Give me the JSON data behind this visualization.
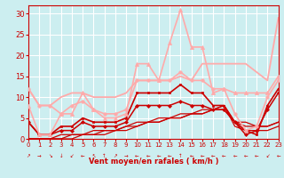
{
  "xlabel": "Vent moyen/en rafales ( km/h )",
  "xlim": [
    0,
    23
  ],
  "ylim": [
    0,
    32
  ],
  "yticks": [
    0,
    5,
    10,
    15,
    20,
    25,
    30
  ],
  "xticks": [
    0,
    1,
    2,
    3,
    4,
    5,
    6,
    7,
    8,
    9,
    10,
    11,
    12,
    13,
    14,
    15,
    16,
    17,
    18,
    19,
    20,
    21,
    22,
    23
  ],
  "bg_color": "#cceef0",
  "grid_color": "#aadddd",
  "series": [
    {
      "x": [
        0,
        1,
        2,
        3,
        4,
        5,
        6,
        7,
        8,
        9,
        10,
        11,
        12,
        13,
        14,
        15,
        16,
        17,
        18,
        19,
        20,
        21,
        22,
        23
      ],
      "y": [
        0,
        0,
        0,
        1,
        1,
        1,
        2,
        2,
        2,
        3,
        3,
        4,
        4,
        5,
        5,
        6,
        6,
        7,
        7,
        4,
        4,
        3,
        3,
        4
      ],
      "color": "#cc0000",
      "lw": 0.9,
      "marker": null,
      "ms": 0
    },
    {
      "x": [
        0,
        1,
        2,
        3,
        4,
        5,
        6,
        7,
        8,
        9,
        10,
        11,
        12,
        13,
        14,
        15,
        16,
        17,
        18,
        19,
        20,
        21,
        22,
        23
      ],
      "y": [
        0,
        0,
        0,
        0,
        1,
        1,
        1,
        2,
        2,
        3,
        4,
        4,
        5,
        5,
        6,
        6,
        7,
        7,
        8,
        4,
        3,
        3,
        3,
        4
      ],
      "color": "#cc0000",
      "lw": 0.9,
      "marker": null,
      "ms": 0
    },
    {
      "x": [
        0,
        1,
        2,
        3,
        4,
        5,
        6,
        7,
        8,
        9,
        10,
        11,
        12,
        13,
        14,
        15,
        16,
        17,
        18,
        19,
        20,
        21,
        22,
        23
      ],
      "y": [
        0,
        0,
        0,
        0,
        0,
        1,
        1,
        1,
        2,
        2,
        3,
        4,
        4,
        5,
        5,
        6,
        6,
        7,
        8,
        3,
        2,
        2,
        2,
        3
      ],
      "color": "#cc0000",
      "lw": 0.9,
      "marker": null,
      "ms": 0
    },
    {
      "x": [
        0,
        1,
        2,
        3,
        4,
        5,
        6,
        7,
        8,
        9,
        10,
        11,
        12,
        13,
        14,
        15,
        16,
        17,
        18,
        19,
        20,
        21,
        22,
        23
      ],
      "y": [
        4,
        1,
        1,
        3,
        3,
        5,
        4,
        4,
        4,
        5,
        11,
        11,
        11,
        11,
        13,
        11,
        11,
        8,
        8,
        4,
        2,
        1,
        8,
        12
      ],
      "color": "#cc0000",
      "lw": 1.2,
      "marker": "s",
      "ms": 2.0
    },
    {
      "x": [
        0,
        1,
        2,
        3,
        4,
        5,
        6,
        7,
        8,
        9,
        10,
        11,
        12,
        13,
        14,
        15,
        16,
        17,
        18,
        19,
        20,
        21,
        22,
        23
      ],
      "y": [
        4,
        1,
        1,
        2,
        2,
        4,
        3,
        3,
        3,
        4,
        8,
        8,
        8,
        8,
        9,
        8,
        8,
        7,
        7,
        4,
        1,
        2,
        7,
        11
      ],
      "color": "#cc0000",
      "lw": 1.1,
      "marker": "D",
      "ms": 2.0
    },
    {
      "x": [
        0,
        1,
        2,
        3,
        4,
        5,
        6,
        7,
        8,
        9,
        10,
        11,
        12,
        13,
        14,
        15,
        16,
        17,
        18,
        19,
        20,
        21,
        22,
        23
      ],
      "y": [
        12,
        8,
        8,
        6,
        8,
        9,
        7,
        6,
        6,
        7,
        14,
        14,
        14,
        14,
        16,
        14,
        14,
        12,
        12,
        6,
        2,
        3,
        10,
        14
      ],
      "color": "#ffaaaa",
      "lw": 1.2,
      "marker": "o",
      "ms": 2.5
    },
    {
      "x": [
        0,
        1,
        2,
        3,
        4,
        5,
        6,
        7,
        8,
        9,
        10,
        11,
        12,
        13,
        14,
        15,
        16,
        17,
        18,
        19,
        20,
        21,
        22,
        23
      ],
      "y": [
        12,
        8,
        8,
        10,
        11,
        11,
        10,
        10,
        10,
        11,
        14,
        14,
        14,
        14,
        15,
        14,
        18,
        18,
        18,
        18,
        18,
        16,
        14,
        29
      ],
      "color": "#ffaaaa",
      "lw": 1.3,
      "marker": null,
      "ms": 0
    },
    {
      "x": [
        0,
        1,
        2,
        3,
        4,
        5,
        6,
        7,
        8,
        9,
        10,
        11,
        12,
        13,
        14,
        15,
        16,
        17,
        18,
        19,
        20,
        21,
        22,
        23
      ],
      "y": [
        8,
        1,
        1,
        6,
        6,
        11,
        7,
        5,
        5,
        6,
        18,
        18,
        14,
        23,
        31,
        22,
        22,
        11,
        12,
        11,
        11,
        11,
        11,
        15
      ],
      "color": "#ffaaaa",
      "lw": 1.2,
      "marker": "^",
      "ms": 3.0
    }
  ]
}
